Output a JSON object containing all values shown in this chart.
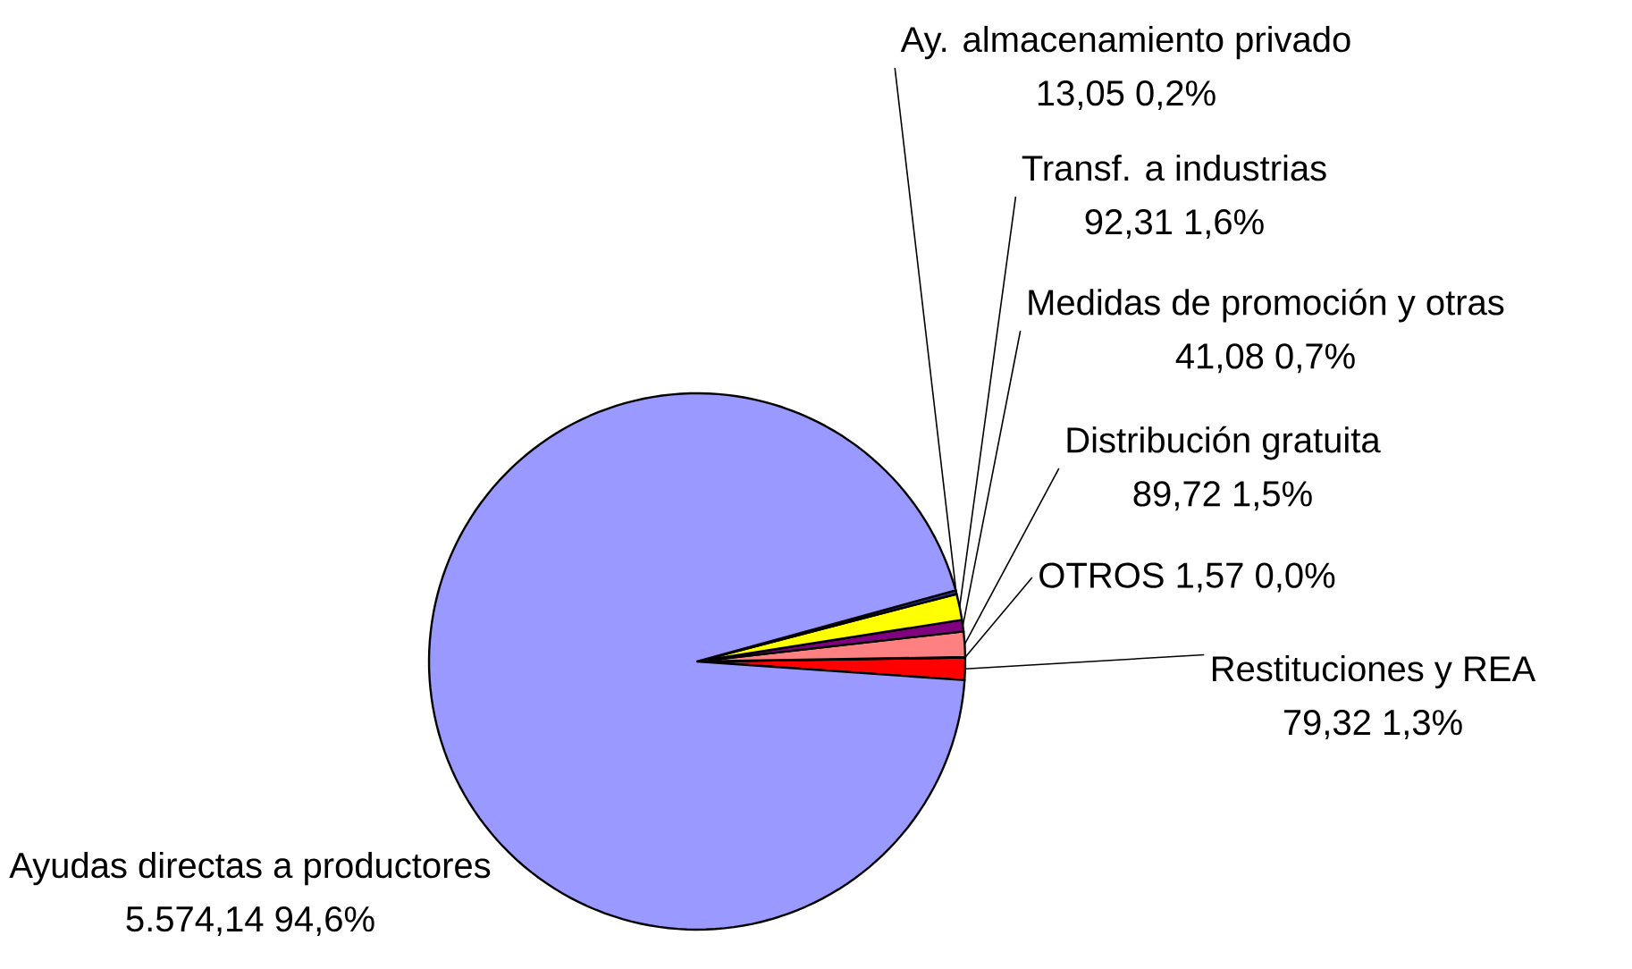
{
  "chart_data": {
    "type": "pie",
    "categories": [
      "Restituciones y REA",
      "OTROS",
      "Distribución gratuita",
      "Medidas de promoción y otras",
      "Transf. a industrias",
      "Ay. almacenamiento privado",
      "Ayudas directas a productores"
    ],
    "values": [
      79.32,
      1.57,
      89.72,
      41.08,
      92.31,
      13.05,
      5574.14
    ],
    "value_labels": [
      "79,32 1,3%",
      "1,57 0,0%",
      "89,72 1,5%",
      "41,08 0,7%",
      "92,31 1,6%",
      "13,05 0,2%",
      "5.574,14 94,6%"
    ],
    "colors": [
      "#ff0000",
      "#800000",
      "#ff8080",
      "#800080",
      "#ffff00",
      "#333399",
      "#9999ff"
    ]
  }
}
